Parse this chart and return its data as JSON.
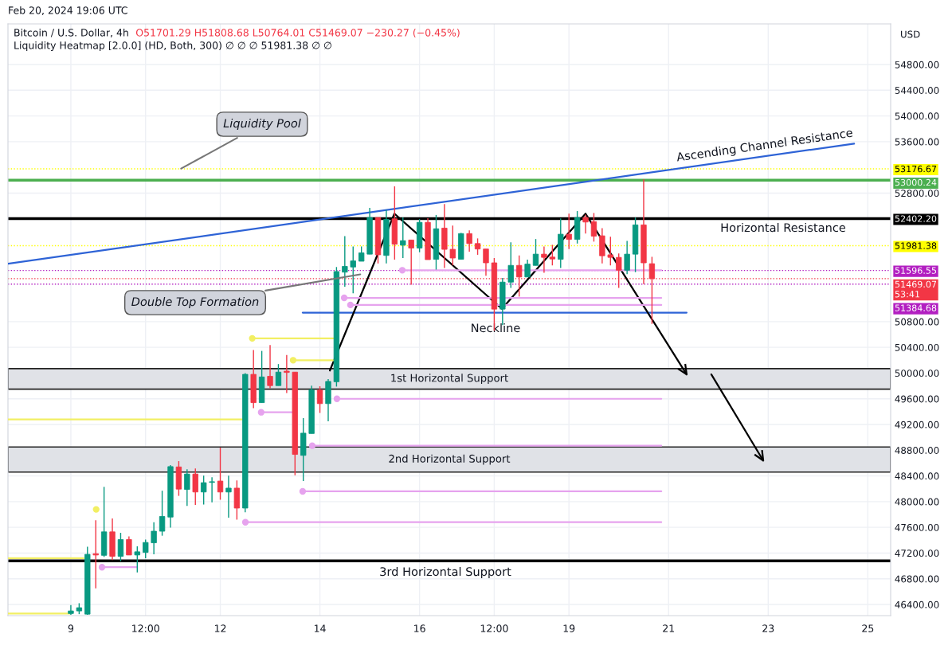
{
  "chart_data": {
    "type": "candlestick",
    "title": "Bitcoin / U.S. Dollar, 4h",
    "subtitle": "O51701.29 H51808.68 L50764.01 C51469.07 −230.27 (−0.45%)",
    "x": [
      "2024-02-09T00:00",
      "2024-02-09T04:00",
      "2024-02-09T08:00",
      "2024-02-09T12:00",
      "2024-02-09T16:00",
      "2024-02-09T20:00",
      "2024-02-10T00:00",
      "2024-02-10T04:00",
      "2024-02-10T08:00",
      "2024-02-10T12:00",
      "2024-02-10T16:00",
      "2024-02-10T20:00",
      "2024-02-11T00:00",
      "2024-02-11T04:00",
      "2024-02-11T08:00",
      "2024-02-11T12:00",
      "2024-02-11T16:00",
      "2024-02-11T20:00",
      "2024-02-12T00:00",
      "2024-02-12T04:00",
      "2024-02-12T08:00",
      "2024-02-12T12:00",
      "2024-02-12T16:00",
      "2024-02-12T20:00",
      "2024-02-13T00:00",
      "2024-02-13T04:00",
      "2024-02-13T08:00",
      "2024-02-13T12:00",
      "2024-02-13T16:00",
      "2024-02-13T20:00",
      "2024-02-14T00:00",
      "2024-02-14T04:00",
      "2024-02-14T08:00",
      "2024-02-14T12:00",
      "2024-02-14T16:00",
      "2024-02-14T20:00",
      "2024-02-15T00:00",
      "2024-02-15T04:00",
      "2024-02-15T08:00",
      "2024-02-15T12:00",
      "2024-02-15T16:00",
      "2024-02-15T20:00",
      "2024-02-16T00:00",
      "2024-02-16T04:00",
      "2024-02-16T08:00",
      "2024-02-16T12:00",
      "2024-02-16T16:00",
      "2024-02-16T20:00",
      "2024-02-17T00:00",
      "2024-02-17T04:00",
      "2024-02-17T08:00",
      "2024-02-17T12:00",
      "2024-02-17T16:00",
      "2024-02-17T20:00",
      "2024-02-18T00:00",
      "2024-02-18T04:00",
      "2024-02-18T08:00",
      "2024-02-18T12:00",
      "2024-02-18T16:00",
      "2024-02-18T20:00",
      "2024-02-19T00:00",
      "2024-02-19T04:00",
      "2024-02-19T08:00",
      "2024-02-19T12:00",
      "2024-02-19T16:00",
      "2024-02-19T20:00",
      "2024-02-20T00:00",
      "2024-02-20T04:00",
      "2024-02-20T08:00",
      "2024-02-20T12:00",
      "2024-02-20T16:00"
    ],
    "ohlc": [
      [
        46260,
        46390,
        46240,
        46300
      ],
      [
        46300,
        46420,
        46250,
        46350
      ],
      [
        46250,
        47300,
        46240,
        47180
      ],
      [
        47190,
        47710,
        46650,
        47170
      ],
      [
        47165,
        48230,
        47140,
        47530
      ],
      [
        47530,
        47740,
        47090,
        47150
      ],
      [
        47150,
        47515,
        47070,
        47410
      ],
      [
        47410,
        47460,
        47170,
        47170
      ],
      [
        47170,
        47305,
        46900,
        47220
      ],
      [
        47210,
        47410,
        47120,
        47365
      ],
      [
        47360,
        47680,
        47180,
        47540
      ],
      [
        47540,
        48170,
        47470,
        47770
      ],
      [
        47760,
        48570,
        47595,
        48545
      ],
      [
        48540,
        48630,
        48090,
        48195
      ],
      [
        48190,
        48505,
        47935,
        48430
      ],
      [
        48430,
        48515,
        47950,
        48150
      ],
      [
        48150,
        48405,
        47955,
        48295
      ],
      [
        48300,
        48380,
        47990,
        48310
      ],
      [
        48320,
        48840,
        48030,
        48150
      ],
      [
        48150,
        48405,
        47750,
        48210
      ],
      [
        48210,
        48330,
        47720,
        47900
      ],
      [
        47900,
        50000,
        47835,
        49980
      ],
      [
        49980,
        50360,
        49455,
        49540
      ],
      [
        49540,
        50345,
        49540,
        49940
      ],
      [
        49950,
        50435,
        49765,
        49805
      ],
      [
        49805,
        50140,
        49805,
        50015
      ],
      [
        50030,
        50280,
        49690,
        50010
      ],
      [
        50015,
        50015,
        48410,
        48735
      ],
      [
        48720,
        49300,
        48320,
        49065
      ],
      [
        49060,
        49805,
        49060,
        49740
      ],
      [
        49735,
        49795,
        49380,
        49525
      ],
      [
        49525,
        49905,
        49250,
        49870
      ],
      [
        49865,
        51650,
        49790,
        51580
      ],
      [
        51570,
        52130,
        51345,
        51660
      ],
      [
        51650,
        51970,
        51240,
        51745
      ],
      [
        51740,
        51970,
        51740,
        51870
      ],
      [
        51850,
        52570,
        51850,
        52420
      ],
      [
        52420,
        52420,
        51705,
        51840
      ],
      [
        51830,
        52540,
        51705,
        52390
      ],
      [
        52400,
        52905,
        51765,
        52005
      ],
      [
        51990,
        52420,
        51790,
        52060
      ],
      [
        52070,
        52070,
        51375,
        51945
      ],
      [
        51945,
        52395,
        51880,
        52345
      ],
      [
        52345,
        52410,
        51765,
        51765
      ],
      [
        51770,
        52460,
        51610,
        52245
      ],
      [
        52255,
        52630,
        51635,
        51925
      ],
      [
        51925,
        52295,
        51675,
        51790
      ],
      [
        51770,
        52180,
        51770,
        52170
      ],
      [
        52170,
        52220,
        51890,
        52015
      ],
      [
        52015,
        52095,
        51840,
        51930
      ],
      [
        51930,
        51930,
        51515,
        51715
      ],
      [
        51715,
        51790,
        50660,
        50995
      ],
      [
        50995,
        51480,
        50745,
        51415
      ],
      [
        51415,
        52035,
        51325,
        51675
      ],
      [
        51675,
        51830,
        51190,
        51495
      ],
      [
        51495,
        51765,
        51495,
        51695
      ],
      [
        51675,
        52085,
        51675,
        51850
      ],
      [
        51850,
        51970,
        51560,
        51800
      ],
      [
        51805,
        51995,
        51675,
        51775
      ],
      [
        51770,
        52405,
        51635,
        52160
      ],
      [
        52160,
        52480,
        51930,
        52080
      ],
      [
        52080,
        52520,
        52015,
        52420
      ],
      [
        52420,
        52465,
        52170,
        52350
      ],
      [
        52355,
        52490,
        52045,
        52130
      ],
      [
        52135,
        52255,
        51705,
        51825
      ],
      [
        51840,
        52120,
        51675,
        51800
      ],
      [
        51800,
        51860,
        51325,
        51600
      ],
      [
        51600,
        52055,
        51540,
        51850
      ],
      [
        51850,
        52420,
        51570,
        52305
      ],
      [
        52305,
        53015,
        51385,
        51715
      ],
      [
        51701.29,
        51808.68,
        50764.01,
        51469.07
      ]
    ],
    "colors": [
      "#089981",
      "#089981",
      "#089981",
      "#f23645",
      "#089981",
      "#f23645",
      "#089981",
      "#f23645",
      "#089981",
      "#089981",
      "#089981",
      "#089981",
      "#089981",
      "#f23645",
      "#089981",
      "#f23645",
      "#089981",
      "#089981",
      "#f23645",
      "#089981",
      "#f23645",
      "#089981",
      "#f23645",
      "#089981",
      "#f23645",
      "#089981",
      "#f23645",
      "#f23645",
      "#089981",
      "#089981",
      "#f23645",
      "#089981",
      "#089981",
      "#089981",
      "#089981",
      "#089981",
      "#089981",
      "#f23645",
      "#089981",
      "#f23645",
      "#089981",
      "#f23645",
      "#089981",
      "#f23645",
      "#089981",
      "#f23645",
      "#f23645",
      "#089981",
      "#f23645",
      "#f23645",
      "#f23645",
      "#f23645",
      "#089981",
      "#089981",
      "#f23645",
      "#089981",
      "#089981",
      "#f23645",
      "#f23645",
      "#089981",
      "#f23645",
      "#089981",
      "#f23645",
      "#f23645",
      "#f23645",
      "#f23645",
      "#f23645",
      "#089981",
      "#089981",
      "#f23645",
      "#f23645"
    ],
    "series": [
      {
        "type": "line",
        "color": "#2e63d6",
        "x": [
          "2024-02-07T17:42",
          "2024-02-24T17:24"
        ],
        "values": [
          51700,
          53570
        ]
      },
      {
        "type": "line",
        "color": "#2e63d6",
        "x": [
          "2024-02-13T15:42",
          "2024-02-21T08:42"
        ],
        "values": [
          50940,
          50940
        ]
      },
      {
        "type": "line",
        "color": "#000000",
        "x": [
          "2024-02-14T04:48",
          "2024-02-15T11:54",
          "2024-02-17T15:42",
          "2024-02-19T08:00",
          "2024-02-21T08:42"
        ],
        "values": [
          50040,
          52480,
          51000,
          52480,
          49980
        ]
      },
      {
        "type": "line",
        "color": "#000000",
        "x": [
          "2024-02-21T20:36",
          "2024-02-22T21:36"
        ],
        "values": [
          49980,
          48640
        ]
      },
      {
        "type": "line",
        "color": "#e6a3ee",
        "marker": "circle",
        "x": [
          "2024-02-09T15:00",
          "2024-02-10T07:54"
        ],
        "values": [
          46980,
          46980
        ]
      },
      {
        "type": "line",
        "color": "#e6a3ee",
        "marker": "circle",
        "x": [
          "2024-02-12T19:42",
          "2024-02-13T11:06"
        ],
        "values": [
          49390,
          49390
        ]
      },
      {
        "type": "line",
        "color": "#e6a3ee",
        "marker": "circle",
        "x": [
          "2024-02-14T08:12",
          "2024-02-20T20:30"
        ],
        "values": [
          49600,
          49600
        ]
      },
      {
        "type": "line",
        "color": "#e6a3ee",
        "marker": "circle",
        "x": [
          "2024-02-13T20:18",
          "2024-02-20T20:30"
        ],
        "values": [
          48870,
          48870
        ]
      },
      {
        "type": "line",
        "color": "#e6a3ee",
        "marker": "circle",
        "x": [
          "2024-02-13T15:42",
          "2024-02-20T20:30"
        ],
        "values": [
          48160,
          48160
        ]
      },
      {
        "type": "line",
        "color": "#e6a3ee",
        "marker": "circle",
        "x": [
          "2024-02-12T12:06",
          "2024-02-20T20:30"
        ],
        "values": [
          47680,
          47680
        ]
      },
      {
        "type": "line",
        "color": "#e6a3ee",
        "marker": "circle",
        "x": [
          "2024-02-14T11:42",
          "2024-02-20T20:30"
        ],
        "values": [
          51170,
          51170
        ]
      },
      {
        "type": "line",
        "color": "#e6a3ee",
        "marker": "circle",
        "x": [
          "2024-02-14T14:42",
          "2024-02-20T20:30"
        ],
        "values": [
          51060,
          51060
        ]
      },
      {
        "type": "line",
        "color": "#e6a3ee",
        "marker": "circle",
        "x": [
          "2024-02-15T15:42",
          "2024-02-20T20:30"
        ],
        "values": [
          51600,
          51600
        ]
      },
      {
        "type": "line",
        "color": "#f2ef63",
        "marker": "circle",
        "x": [
          "2024-02-12T15:24",
          "2024-02-14T07:06"
        ],
        "values": [
          50540,
          50540
        ]
      },
      {
        "type": "line",
        "color": "#f2ef63",
        "marker": "circle",
        "x": [
          "2024-02-13T11:06",
          "2024-02-14T07:06"
        ],
        "values": [
          50200,
          50200
        ]
      },
      {
        "type": "line",
        "color": "#f2ef63",
        "x": [
          "2024-02-07T17:42",
          "2024-02-12T10:54"
        ],
        "values": [
          49280,
          49280
        ]
      },
      {
        "type": "line",
        "color": "#f2ef63",
        "x": [
          "2024-02-07T17:42",
          "2024-02-09T06:06"
        ],
        "values": [
          47120,
          47120
        ]
      },
      {
        "type": "line",
        "color": "#f2ef63",
        "x": [
          "2024-02-07T17:42",
          "2024-02-08T23:36"
        ],
        "values": [
          46260,
          46260
        ]
      },
      {
        "type": "line",
        "color": "#f2ef63",
        "marker": "circle",
        "x": [
          "2024-02-09T12:12"
        ],
        "values": [
          47880
        ]
      }
    ],
    "ref_lines": [
      {
        "axis": "y",
        "value": 53176.67,
        "label": "53176.67",
        "color": "#ffff00",
        "line_style": "dotted"
      },
      {
        "axis": "y",
        "value": 53000.24,
        "label": "53000.24",
        "color": "#4caf50",
        "line_style": "solid"
      },
      {
        "axis": "y",
        "value": 52402.2,
        "label": "52402.20",
        "color": "#000000",
        "line_style": "solid"
      },
      {
        "axis": "y",
        "value": 51981.38,
        "label": "51981.38",
        "color": "#ffff00",
        "line_style": "dotted"
      },
      {
        "axis": "y",
        "value": 51596.55,
        "label": "51596.55",
        "color": "#b21fc1",
        "line_style": "dotted"
      },
      {
        "axis": "y",
        "value": 51469.07,
        "label": "51469.07\n53:41",
        "color": "#f23645",
        "line_style": "dotted"
      },
      {
        "axis": "y",
        "value": 51384.68,
        "label": "51384.68",
        "color": "#b21fc1",
        "line_style": "dotted"
      },
      {
        "axis": "y",
        "value": 47080,
        "color": "#000000",
        "line_style": "solid"
      }
    ],
    "bands": [
      {
        "axis": "y",
        "from": 49750,
        "to": 50070,
        "label": "1st Horizontal Support",
        "color": "#e0e2e7"
      },
      {
        "axis": "y",
        "from": 48460,
        "to": 48850,
        "label": "2nd Horizontal Support",
        "color": "#e0e2e7"
      }
    ],
    "annotations": [
      "Liquidity Heatmap [2.0.0] (HD, Both, 300) ∅ ∅ ∅ 51981.38 ∅ ∅",
      "Feb 20, 2024 19:06 UTC",
      "USD",
      {
        "text": "Liquidity Pool",
        "x": "2024-02-11T04:12",
        "y": 53165
      },
      "Double Top Formation",
      "Ascending Channel Resistance",
      "Horizontal Resistance",
      "Neckline",
      "3rd Horizontal Support"
    ],
    "xlim": [
      "2024-02-07T17:42",
      "2024-02-25T11:00"
    ],
    "ylim": [
      46227,
      55432
    ],
    "xticks": [
      {
        "value": "2024-02-09",
        "label": "9"
      },
      {
        "value": "2024-02-10T12:00",
        "label": "12:00"
      },
      {
        "value": "2024-02-12",
        "label": "12"
      },
      {
        "value": "2024-02-14",
        "label": "14"
      },
      {
        "value": "2024-02-16",
        "label": "16"
      },
      {
        "value": "2024-02-17T12:00",
        "label": "12:00"
      },
      {
        "value": "2024-02-19",
        "label": "19"
      },
      {
        "value": "2024-02-21",
        "label": "21"
      },
      {
        "value": "2024-02-23",
        "label": "23"
      },
      {
        "value": "2024-02-25",
        "label": "25"
      }
    ],
    "yticks": [
      {
        "value": 46400,
        "label": "46400.00"
      },
      {
        "value": 46800,
        "label": "46800.00"
      },
      {
        "value": 47200,
        "label": "47200.00"
      },
      {
        "value": 47600,
        "label": "47600.00"
      },
      {
        "value": 48000,
        "label": "48000.00"
      },
      {
        "value": 48400,
        "label": "48400.00"
      },
      {
        "value": 48800,
        "label": "48800.00"
      },
      {
        "value": 49200,
        "label": "49200.00"
      },
      {
        "value": 49600,
        "label": "49600.00"
      },
      {
        "value": 50000,
        "label": "50000.00"
      },
      {
        "value": 50400,
        "label": "50400.00"
      },
      {
        "value": 50800,
        "label": "50800.00"
      },
      {
        "value": 52800,
        "label": "52800.00"
      },
      {
        "value": 53600,
        "label": "53600.00"
      },
      {
        "value": 54000,
        "label": "54000.00"
      },
      {
        "value": 54400,
        "label": "54400.00"
      },
      {
        "value": 54800,
        "label": "54800.00"
      }
    ],
    "grid": true
  }
}
